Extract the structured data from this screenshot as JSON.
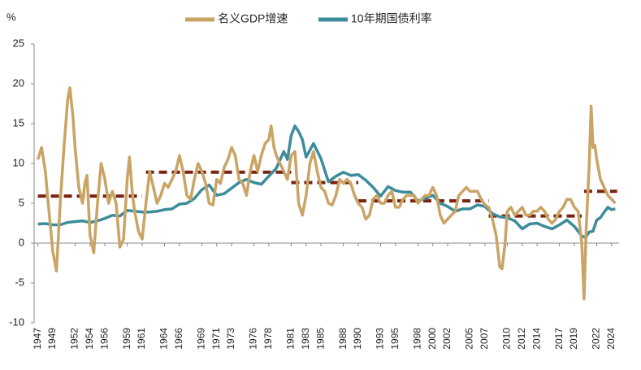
{
  "chart_data": {
    "type": "line",
    "unit_label": "%",
    "xlim": [
      1946.5,
      2025
    ],
    "xticks": [
      1947,
      1949,
      1952,
      1954,
      1956,
      1959,
      1961,
      1964,
      1966,
      1969,
      1971,
      1973,
      1976,
      1978,
      1981,
      1983,
      1985,
      1988,
      1990,
      1993,
      1995,
      1998,
      2000,
      2002,
      2005,
      2007,
      2010,
      2012,
      2014,
      2017,
      2019,
      2022,
      2024
    ],
    "ylim": [
      -10,
      25
    ],
    "yticks": [
      -10,
      -5,
      0,
      5,
      10,
      15,
      20,
      25
    ],
    "legend": "top",
    "series": [
      {
        "name": "名义GDP增速",
        "color": "#c9a465",
        "x": [
          1947,
          1947.5,
          1948,
          1948.5,
          1949,
          1949.5,
          1950,
          1950.5,
          1951,
          1951.3,
          1951.7,
          1952,
          1952.5,
          1953,
          1953.3,
          1953.6,
          1954,
          1954.5,
          1955,
          1955.5,
          1956,
          1956.5,
          1957,
          1957.5,
          1958,
          1958.5,
          1959,
          1959.3,
          1959.7,
          1960,
          1960.5,
          1961,
          1961.5,
          1962,
          1962.5,
          1963,
          1963.5,
          1964,
          1964.5,
          1965,
          1965.5,
          1966,
          1966.5,
          1967,
          1967.5,
          1968,
          1968.5,
          1969,
          1969.5,
          1970,
          1970.5,
          1971,
          1971.5,
          1972,
          1972.5,
          1973,
          1973.5,
          1974,
          1974.5,
          1975,
          1975.5,
          1976,
          1976.5,
          1977,
          1977.5,
          1978,
          1978.3,
          1978.7,
          1979,
          1979.5,
          1980,
          1980.5,
          1981,
          1981.5,
          1982,
          1982.5,
          1983,
          1983.5,
          1984,
          1984.5,
          1985,
          1985.5,
          1986,
          1986.5,
          1987,
          1987.5,
          1988,
          1988.5,
          1989,
          1989.5,
          1990,
          1990.5,
          1991,
          1991.5,
          1992,
          1992.5,
          1993,
          1993.5,
          1994,
          1994.5,
          1995,
          1995.5,
          1996,
          1996.5,
          1997,
          1997.5,
          1998,
          1998.5,
          1999,
          1999.5,
          2000,
          2000.5,
          2001,
          2001.5,
          2002,
          2002.5,
          2003,
          2003.5,
          2004,
          2004.5,
          2005,
          2005.5,
          2006,
          2006.5,
          2007,
          2007.5,
          2008,
          2008.5,
          2009,
          2009.3,
          2009.7,
          2010,
          2010.5,
          2011,
          2011.5,
          2012,
          2012.5,
          2013,
          2013.5,
          2014,
          2014.5,
          2015,
          2015.5,
          2016,
          2016.5,
          2017,
          2017.5,
          2018,
          2018.5,
          2019,
          2019.5,
          2020,
          2020.3,
          2020.6,
          2021,
          2021.25,
          2021.5,
          2021.75,
          2022,
          2022.5,
          2023,
          2023.5,
          2024,
          2024.5
        ],
        "values": [
          10.5,
          12,
          9,
          4,
          -1,
          -3.5,
          5,
          12,
          18,
          19.5,
          16,
          12,
          7,
          5,
          7.5,
          8.5,
          1,
          -1.2,
          5,
          10,
          8,
          5,
          6.5,
          5,
          -0.5,
          0.5,
          8,
          10.8,
          6,
          4,
          1.5,
          0.5,
          5,
          9,
          7,
          5,
          6,
          7.5,
          7,
          8,
          9,
          11,
          9,
          6,
          5.5,
          8,
          10,
          9,
          7.5,
          5,
          4.8,
          8,
          7.5,
          9.5,
          10.5,
          12,
          11,
          8,
          7.5,
          6,
          9,
          11,
          9,
          11,
          12.5,
          13,
          14.7,
          12,
          11,
          10,
          9,
          8,
          11,
          11.5,
          5,
          3.5,
          6,
          10,
          11.5,
          9,
          7,
          6.5,
          5,
          4.8,
          6,
          8,
          7.5,
          8,
          7.5,
          6,
          5,
          4.5,
          3,
          3.5,
          5.5,
          6,
          5,
          5,
          6,
          6.5,
          4.5,
          4.5,
          5.5,
          6,
          6,
          6,
          5,
          5.5,
          6,
          6,
          7,
          6,
          3.5,
          2.5,
          3,
          3.5,
          4,
          6,
          6.5,
          7,
          6.5,
          6.5,
          6.5,
          5.5,
          4.8,
          4.5,
          3,
          1,
          -3,
          -3.2,
          0,
          4,
          4.5,
          3.5,
          4,
          4.5,
          3.5,
          3.5,
          4,
          4,
          4.5,
          4,
          3,
          2.5,
          3,
          4,
          4.5,
          5.5,
          5.5,
          4.5,
          4,
          0,
          -7,
          2,
          10,
          17.2,
          12,
          12.3,
          10.5,
          8,
          7,
          6,
          5.5,
          5
        ]
      },
      {
        "name": "10年期国债利率",
        "color": "#3d8c9b",
        "x": [
          1947,
          1948,
          1949,
          1950,
          1951,
          1952,
          1953,
          1954,
          1955,
          1956,
          1957,
          1958,
          1959,
          1960,
          1961,
          1962,
          1963,
          1964,
          1965,
          1966,
          1967,
          1968,
          1969,
          1970,
          1971,
          1972,
          1973,
          1974,
          1975,
          1976,
          1977,
          1978,
          1979,
          1980,
          1980.5,
          1981,
          1981.5,
          1982,
          1982.5,
          1983,
          1984,
          1985,
          1986,
          1987,
          1988,
          1989,
          1990,
          1991,
          1992,
          1993,
          1994,
          1995,
          1996,
          1997,
          1998,
          1999,
          2000,
          2001,
          2002,
          2003,
          2004,
          2005,
          2006,
          2007,
          2008,
          2009,
          2010,
          2011,
          2012,
          2013,
          2014,
          2015,
          2016,
          2017,
          2018,
          2019,
          2020,
          2020.5,
          2021,
          2021.5,
          2022,
          2022.5,
          2023,
          2023.5,
          2024,
          2024.5
        ],
        "values": [
          2.4,
          2.45,
          2.3,
          2.3,
          2.6,
          2.7,
          2.8,
          2.6,
          2.8,
          3.1,
          3.5,
          3.4,
          4.1,
          4.0,
          3.9,
          3.9,
          4.0,
          4.2,
          4.3,
          4.9,
          5.0,
          5.6,
          6.7,
          7.3,
          6.0,
          6.2,
          6.9,
          7.6,
          8.0,
          7.6,
          7.4,
          8.4,
          9.4,
          11.5,
          10.5,
          13.5,
          14.7,
          14,
          13,
          10.8,
          12.5,
          10.6,
          7.7,
          8.4,
          8.9,
          8.5,
          8.6,
          7.9,
          7.0,
          5.9,
          7.1,
          6.6,
          6.4,
          6.4,
          5.3,
          5.6,
          6.0,
          5.0,
          4.6,
          4.0,
          4.3,
          4.3,
          4.8,
          4.6,
          3.7,
          3.3,
          3.2,
          2.8,
          1.8,
          2.4,
          2.5,
          2.1,
          1.8,
          2.3,
          2.9,
          2.1,
          0.9,
          0.7,
          1.4,
          1.5,
          2.9,
          3.2,
          3.9,
          4.5,
          4.2,
          4.3
        ]
      }
    ],
    "period_averages": {
      "color": "#7a2412",
      "dashed": true,
      "segments": [
        {
          "start": 1947,
          "end": 1961,
          "value": 5.9
        },
        {
          "start": 1961.5,
          "end": 1981,
          "value": 8.9
        },
        {
          "start": 1981,
          "end": 1990,
          "value": 7.6
        },
        {
          "start": 1990,
          "end": 2007.5,
          "value": 5.3
        },
        {
          "start": 2007.5,
          "end": 2020,
          "value": 3.4
        },
        {
          "start": 2020.3,
          "end": 2024.75,
          "value": 6.5
        }
      ]
    }
  }
}
